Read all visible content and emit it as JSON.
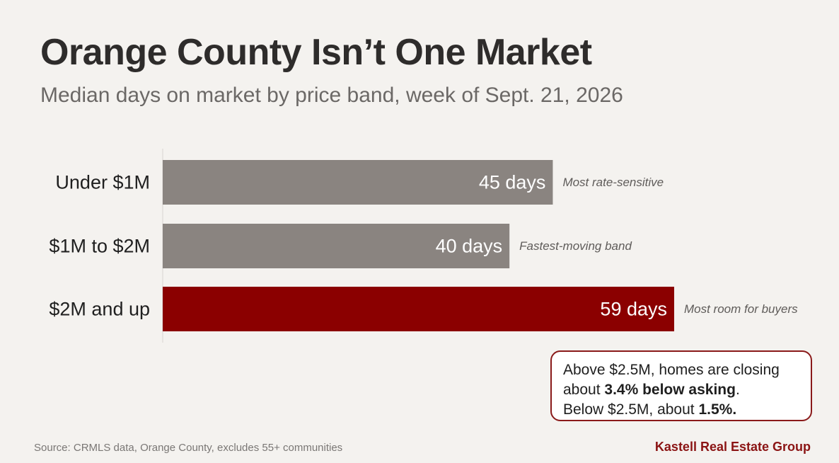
{
  "header": {
    "title": "Orange County Isn’t One Market",
    "subtitle": "Median days on market by price band, week of Sept. 21, 2026"
  },
  "chart_data": {
    "type": "bar",
    "orientation": "horizontal",
    "categories": [
      "Under $1M",
      "$1M to $2M",
      "$2M and up"
    ],
    "values": [
      45,
      40,
      59
    ],
    "value_labels": [
      "45 days",
      "40 days",
      "59 days"
    ],
    "annotations": [
      "Most rate-sensitive",
      "Fastest-moving band",
      "Most room for buyers"
    ],
    "colors": [
      "#8a8480",
      "#8a8480",
      "#8b0000"
    ],
    "xlim": [
      0,
      59
    ],
    "grid": false,
    "legend": "none"
  },
  "callout": {
    "line1": "Above $2.5M, homes are closing",
    "line2_pre": "about ",
    "line2_bold": "3.4% below asking",
    "line2_post": ".",
    "line3_pre": "Below $2.5M, about ",
    "line3_bold": "1.5%."
  },
  "footer": {
    "source": "Source: CRMLS data, Orange County, excludes 55+ communities",
    "brand": "Kastell Real Estate Group"
  },
  "colors": {
    "background": "#f4f2ef",
    "neutral_bar": "#8a8480",
    "accent": "#8b0000"
  }
}
